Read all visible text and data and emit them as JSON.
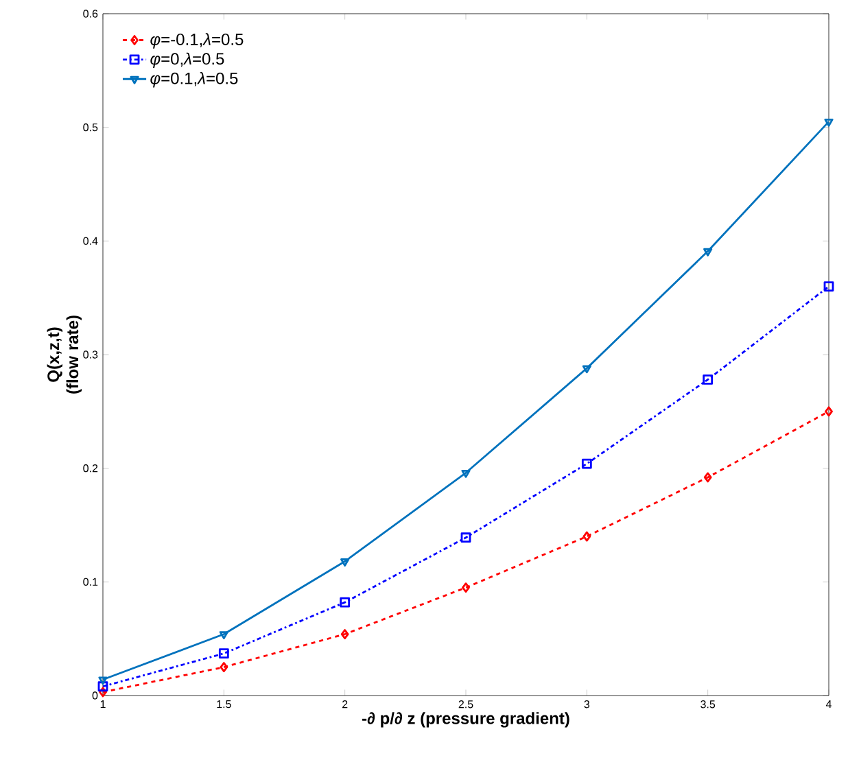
{
  "chart_data": {
    "type": "line",
    "xlabel": "-∂ p/∂ z (pressure gradient)",
    "ylabel": "Q(x,z,t) (flow rate)",
    "x": [
      1,
      1.5,
      2,
      2.5,
      3,
      3.5,
      4
    ],
    "series": [
      {
        "name": "*φ*=-0.1,*λ*=0.5",
        "color": "#ff0000",
        "marker": "diamond",
        "line_style": "dashed",
        "values": [
          0.003,
          0.025,
          0.054,
          0.095,
          0.14,
          0.192,
          0.25
        ]
      },
      {
        "name": "*φ*=0,*λ*=0.5",
        "color": "#0000ff",
        "marker": "square",
        "line_style": "dashdot",
        "values": [
          0.008,
          0.037,
          0.082,
          0.139,
          0.204,
          0.278,
          0.36
        ]
      },
      {
        "name": "*φ*=0.1,*λ*=0.5",
        "color": "#0072bd",
        "marker": "triangle",
        "line_style": "solid",
        "values": [
          0.014,
          0.054,
          0.118,
          0.196,
          0.288,
          0.391,
          0.505
        ]
      }
    ],
    "xlim": [
      1,
      4
    ],
    "ylim": [
      0,
      0.6
    ],
    "xticks": [
      1,
      1.5,
      2,
      2.5,
      3,
      3.5,
      4
    ],
    "yticks": [
      0,
      0.1,
      0.2,
      0.3,
      0.4,
      0.5,
      0.6
    ],
    "grid": false,
    "legend": "top left"
  }
}
